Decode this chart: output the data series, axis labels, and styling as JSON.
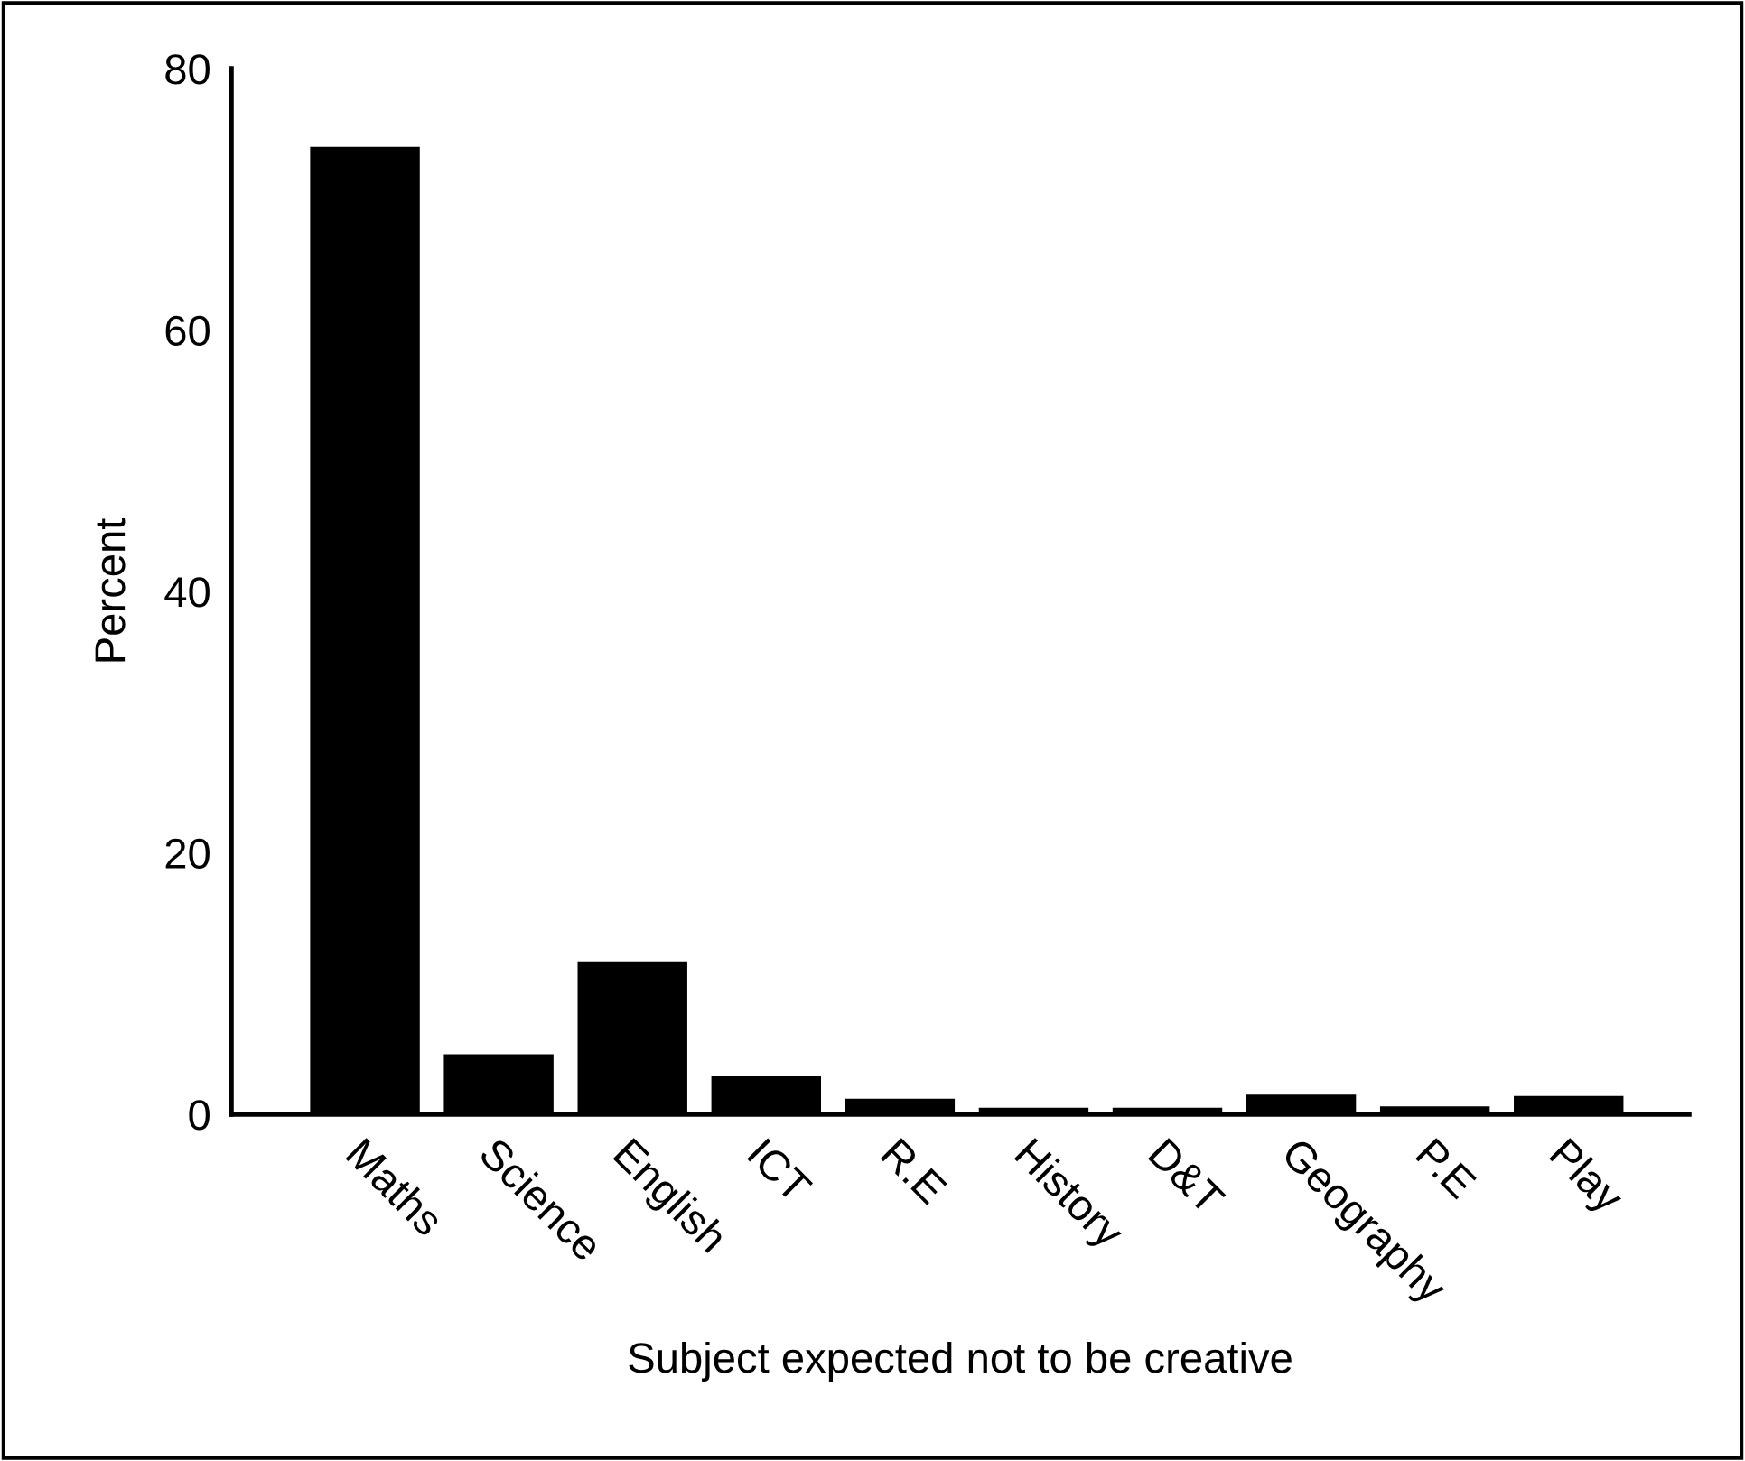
{
  "chart_data": {
    "type": "bar",
    "xlabel": "Subject expected not to be creative",
    "ylabel": "Percent",
    "categories": [
      "Maths",
      "Science",
      "English",
      "ICT",
      "R.E",
      "History",
      "D&T",
      "Geography",
      "P.E",
      "Play"
    ],
    "values": [
      74,
      4.6,
      11.7,
      2.9,
      1.2,
      0.5,
      0.5,
      1.5,
      0.6,
      1.4
    ],
    "color": "#000000",
    "ylim": [
      0,
      80
    ],
    "yticks": [
      0,
      20,
      40,
      60,
      80
    ],
    "grid": false,
    "legend": false
  }
}
